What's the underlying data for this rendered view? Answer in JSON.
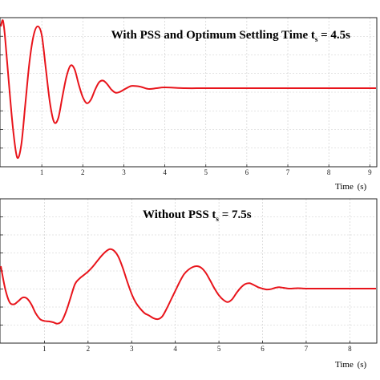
{
  "colors": {
    "curve": "#e8141b",
    "grid": "#c9c9c9",
    "frame": "#222222"
  },
  "chart_data": [
    {
      "type": "line",
      "title": "With PSS and Optimum Settling Time t",
      "title_subscript": "s",
      "title_tail": " = 4.5s",
      "xlabel": "Time",
      "xlabel_unit": "(s)",
      "xlim": [
        0,
        9.15
      ],
      "xticks": [
        1,
        2,
        3,
        4,
        5,
        6,
        7,
        8,
        9
      ],
      "grid": true,
      "series": [
        {
          "x": [
            0,
            0.05,
            0.1,
            0.2,
            0.3,
            0.4,
            0.5,
            0.6,
            0.7,
            0.8,
            0.9,
            1.0,
            1.1,
            1.2,
            1.3,
            1.4,
            1.5,
            1.6,
            1.7,
            1.8,
            1.9,
            2.0,
            2.1,
            2.2,
            2.3,
            2.4,
            2.5,
            2.6,
            2.7,
            2.8,
            2.9,
            3.0,
            3.1,
            3.2,
            3.4,
            3.6,
            3.8,
            4.0,
            4.5,
            5.0,
            6.0,
            7.0,
            8.0,
            9.15
          ],
          "y": [
            0.82,
            0.9,
            0.7,
            0.05,
            -0.55,
            -0.92,
            -0.75,
            -0.2,
            0.35,
            0.7,
            0.82,
            0.7,
            0.25,
            -0.2,
            -0.45,
            -0.4,
            -0.12,
            0.15,
            0.3,
            0.25,
            0.05,
            -0.12,
            -0.2,
            -0.15,
            -0.02,
            0.08,
            0.1,
            0.05,
            -0.02,
            -0.06,
            -0.05,
            -0.02,
            0.01,
            0.03,
            0.02,
            -0.01,
            0.0,
            0.01,
            0.0,
            0.0,
            0.0,
            0.0,
            0.0,
            0.0
          ]
        }
      ]
    },
    {
      "type": "line",
      "title": "Without PSS t",
      "title_subscript": "s",
      "title_tail": " = 7.5s",
      "xlabel": "Time",
      "xlabel_unit": "(s)",
      "xlim": [
        0,
        8.6
      ],
      "xticks": [
        1,
        2,
        3,
        4,
        5,
        6,
        7,
        8
      ],
      "grid": true,
      "series": [
        {
          "x": [
            0,
            0.1,
            0.2,
            0.3,
            0.4,
            0.5,
            0.6,
            0.7,
            0.8,
            0.9,
            1.0,
            1.1,
            1.2,
            1.3,
            1.4,
            1.5,
            1.6,
            1.7,
            1.8,
            1.9,
            2.0,
            2.1,
            2.2,
            2.3,
            2.4,
            2.5,
            2.6,
            2.7,
            2.8,
            2.9,
            3.0,
            3.1,
            3.2,
            3.3,
            3.4,
            3.5,
            3.6,
            3.7,
            3.8,
            3.9,
            4.0,
            4.1,
            4.2,
            4.3,
            4.4,
            4.5,
            4.6,
            4.7,
            4.8,
            4.9,
            5.0,
            5.1,
            5.2,
            5.3,
            5.4,
            5.5,
            5.6,
            5.7,
            5.8,
            5.9,
            6.0,
            6.1,
            6.2,
            6.3,
            6.4,
            6.6,
            6.8,
            7.0,
            7.5,
            8.0,
            8.6
          ],
          "y": [
            0.5,
            0.0,
            -0.3,
            -0.35,
            -0.28,
            -0.2,
            -0.22,
            -0.35,
            -0.55,
            -0.68,
            -0.72,
            -0.73,
            -0.75,
            -0.78,
            -0.72,
            -0.5,
            -0.2,
            0.1,
            0.22,
            0.3,
            0.38,
            0.48,
            0.6,
            0.72,
            0.82,
            0.88,
            0.84,
            0.7,
            0.45,
            0.15,
            -0.12,
            -0.32,
            -0.45,
            -0.55,
            -0.6,
            -0.66,
            -0.68,
            -0.62,
            -0.45,
            -0.25,
            -0.05,
            0.15,
            0.32,
            0.42,
            0.48,
            0.5,
            0.46,
            0.35,
            0.18,
            0.0,
            -0.15,
            -0.25,
            -0.3,
            -0.24,
            -0.1,
            0.02,
            0.1,
            0.12,
            0.08,
            0.03,
            0.0,
            -0.02,
            -0.01,
            0.02,
            0.03,
            0.0,
            0.01,
            0.0,
            0.0,
            0.0,
            0.0
          ]
        }
      ]
    }
  ]
}
